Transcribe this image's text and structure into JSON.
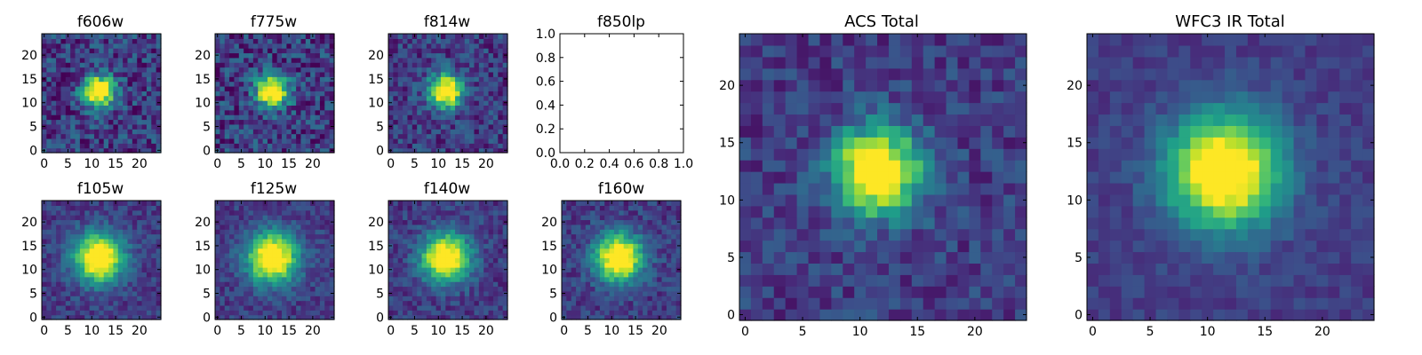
{
  "figure": {
    "panel_titles": [
      "f606w",
      "f775w",
      "f814w",
      "f850lp",
      "f105w",
      "f125w",
      "f140w",
      "f160w",
      "ACS Total",
      "WFC3 IR Total"
    ]
  },
  "chart_data": [
    {
      "type": "heatmap",
      "title": "f606w",
      "grid_size": 25,
      "xticks": [
        0,
        5,
        10,
        15,
        20
      ],
      "yticks": [
        0,
        5,
        10,
        15,
        20
      ],
      "xlim": [
        0,
        24
      ],
      "ylim": [
        0,
        24
      ],
      "source_center": [
        11.5,
        12.5
      ],
      "peak_radius": 2.3,
      "noise": 0.4,
      "colormap": "viridis"
    },
    {
      "type": "heatmap",
      "title": "f775w",
      "grid_size": 25,
      "xticks": [
        0,
        5,
        10,
        15,
        20
      ],
      "yticks": [
        0,
        5,
        10,
        15,
        20
      ],
      "xlim": [
        0,
        24
      ],
      "ylim": [
        0,
        24
      ],
      "source_center": [
        11.5,
        12.5
      ],
      "peak_radius": 2.3,
      "noise": 0.4,
      "colormap": "viridis"
    },
    {
      "type": "heatmap",
      "title": "f814w",
      "grid_size": 25,
      "xticks": [
        0,
        5,
        10,
        15,
        20
      ],
      "yticks": [
        0,
        5,
        10,
        15,
        20
      ],
      "xlim": [
        0,
        24
      ],
      "ylim": [
        0,
        24
      ],
      "source_center": [
        11.5,
        12.5
      ],
      "peak_radius": 2.4,
      "noise": 0.32,
      "colormap": "viridis"
    },
    {
      "type": "empty",
      "title": "f850lp",
      "xticks": [
        "0.0",
        "0.2",
        "0.4",
        "0.6",
        "0.8",
        "1.0"
      ],
      "yticks": [
        "0.0",
        "0.2",
        "0.4",
        "0.6",
        "0.8",
        "1.0"
      ],
      "xlim": [
        0,
        1
      ],
      "ylim": [
        0,
        1
      ]
    },
    {
      "type": "heatmap",
      "title": "f105w",
      "grid_size": 25,
      "xticks": [
        0,
        5,
        10,
        15,
        20
      ],
      "yticks": [
        0,
        5,
        10,
        15,
        20
      ],
      "xlim": [
        0,
        24
      ],
      "ylim": [
        0,
        24
      ],
      "source_center": [
        11.5,
        12.5
      ],
      "peak_radius": 3.5,
      "noise": 0.22,
      "colormap": "viridis"
    },
    {
      "type": "heatmap",
      "title": "f125w",
      "grid_size": 25,
      "xticks": [
        0,
        5,
        10,
        15,
        20
      ],
      "yticks": [
        0,
        5,
        10,
        15,
        20
      ],
      "xlim": [
        0,
        24
      ],
      "ylim": [
        0,
        24
      ],
      "source_center": [
        11.5,
        12.5
      ],
      "peak_radius": 3.6,
      "noise": 0.22,
      "colormap": "viridis"
    },
    {
      "type": "heatmap",
      "title": "f140w",
      "grid_size": 25,
      "xticks": [
        0,
        5,
        10,
        15,
        20
      ],
      "yticks": [
        0,
        5,
        10,
        15,
        20
      ],
      "xlim": [
        0,
        24
      ],
      "ylim": [
        0,
        24
      ],
      "source_center": [
        11.5,
        12.5
      ],
      "peak_radius": 3.4,
      "noise": 0.24,
      "colormap": "viridis"
    },
    {
      "type": "heatmap",
      "title": "f160w",
      "grid_size": 25,
      "xticks": [
        0,
        5,
        10,
        15,
        20
      ],
      "yticks": [
        0,
        5,
        10,
        15,
        20
      ],
      "xlim": [
        0,
        24
      ],
      "ylim": [
        0,
        24
      ],
      "source_center": [
        11.5,
        12.5
      ],
      "peak_radius": 3.4,
      "noise": 0.24,
      "colormap": "viridis"
    },
    {
      "type": "heatmap",
      "title": "ACS Total",
      "grid_size": 25,
      "xticks": [
        0,
        5,
        10,
        15,
        20
      ],
      "yticks": [
        0,
        5,
        10,
        15,
        20
      ],
      "xlim": [
        0,
        24
      ],
      "ylim": [
        0,
        24
      ],
      "source_center": [
        11.5,
        12.5
      ],
      "peak_radius": 2.6,
      "noise": 0.25,
      "colormap": "viridis"
    },
    {
      "type": "heatmap",
      "title": "WFC3 IR Total",
      "grid_size": 25,
      "xticks": [
        0,
        5,
        10,
        15,
        20
      ],
      "yticks": [
        0,
        5,
        10,
        15,
        20
      ],
      "xlim": [
        0,
        24
      ],
      "ylim": [
        0,
        24
      ],
      "source_center": [
        11.5,
        12.5
      ],
      "peak_radius": 3.4,
      "noise": 0.14,
      "colormap": "viridis"
    }
  ]
}
